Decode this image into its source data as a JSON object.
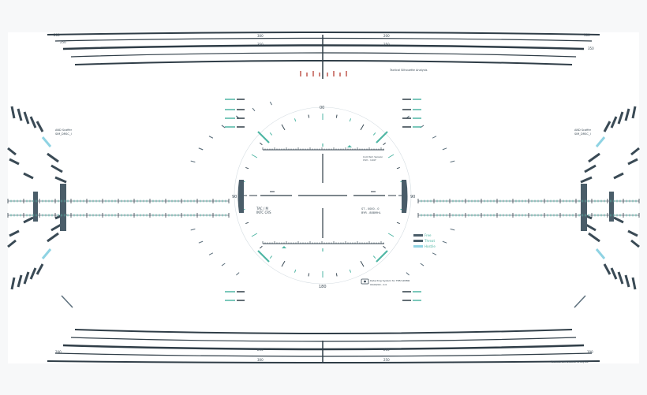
{
  "colors": {
    "background": "#f7f8f9",
    "panel": "#ffffff",
    "line_dark": "#2f3d47",
    "line_mid": "#5c6f7c",
    "accent_teal": "#4fb6a4",
    "accent_blue": "#8fd3e3",
    "accent_red": "#c0584f",
    "text": "#3b4a55"
  },
  "top_band": {
    "scale_marks_left": [
      "200",
      "250",
      "300",
      "350"
    ],
    "scale_marks_right": [
      "200",
      "250",
      "300",
      "350"
    ],
    "caption": "Tactical Silhouette Analysis"
  },
  "bottom_band": {
    "scale_marks_left": [
      "200",
      "250",
      "300",
      "350"
    ],
    "scale_marks_right": [
      "200",
      "250",
      "300",
      "350"
    ],
    "caption": "Tactical Silhouette Analysis"
  },
  "compass": {
    "top_label": "00",
    "bottom_label": "180",
    "left_label": "90",
    "right_label": "90"
  },
  "readouts": {
    "left_primary": "TAC / M",
    "left_secondary": "INTC CRS",
    "right_primary": "ST - 0000 - 0",
    "right_secondary": "BYR - 888MHL",
    "upper_right_1": "Cold Sim Version",
    "upper_right_2": "CSV - 1447"
  },
  "side_panels": {
    "left_header_1": "AND Scaffer",
    "left_header_2": "SIM_DRSC_I",
    "right_header_1": "AND Scaffer",
    "right_header_2": "SIM_DRSC_I"
  },
  "legend": {
    "items": [
      "Free",
      "Threat",
      "Hostile"
    ]
  },
  "badge": {
    "line1": "Detecting System for TBF/12MM6",
    "line2": "00/00/00 - 0.0"
  }
}
